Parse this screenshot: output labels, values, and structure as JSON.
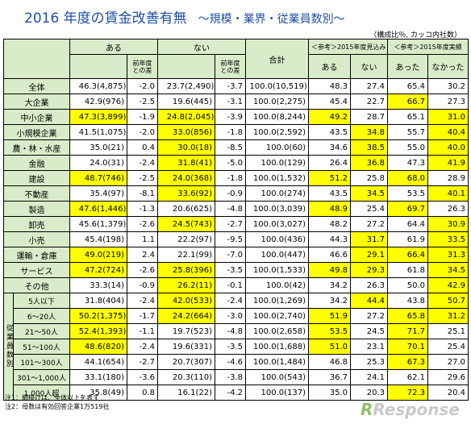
{
  "title": "2016 年度の賃金改善有無",
  "subtitle": "～規模・業界・従業員数別～",
  "unit_note": "（構成比％, カッコ内社数）",
  "headers": {
    "aru": "ある",
    "nai": "ない",
    "prev1": "前年度",
    "prev2": "との差",
    "total": "合計",
    "ref2016": "＜参考＞2015年度見込み",
    "ref2015": "＜参考＞2015年度実績",
    "mikomi_aru": "ある",
    "mikomi_nai": "ない",
    "jisseki_atta": "あった",
    "jisseki_nakatta": "なかった"
  },
  "employee_group_label": "従業員数別",
  "rows": [
    {
      "label": "全体",
      "aru_pct": "46.3",
      "aru_cnt": "(4,875)",
      "aru_diff": "-2.0",
      "nai_pct": "23.7",
      "nai_cnt": "(2,490)",
      "nai_diff": "-3.7",
      "tot_pct": "100.0",
      "tot_cnt": "(10,519)",
      "m_aru": "48.3",
      "m_nai": "27.4",
      "j_atta": "65.4",
      "j_nakatta": "30.2",
      "hl": []
    },
    {
      "label": "大企業",
      "aru_pct": "42.9",
      "aru_cnt": "(976)",
      "aru_diff": "-2.5",
      "nai_pct": "19.6",
      "nai_cnt": "(445)",
      "nai_diff": "-3.1",
      "tot_pct": "100.0",
      "tot_cnt": "(2,275)",
      "m_aru": "45.4",
      "m_nai": "22.7",
      "j_atta": "66.7",
      "j_nakatta": "27.3",
      "hl": [
        "j_atta"
      ]
    },
    {
      "label": "中小企業",
      "aru_pct": "47.3",
      "aru_cnt": "(3,899)",
      "aru_diff": "-1.9",
      "nai_pct": "24.8",
      "nai_cnt": "(2,045)",
      "nai_diff": "-3.9",
      "tot_pct": "100.0",
      "tot_cnt": "(8,244)",
      "m_aru": "49.2",
      "m_nai": "28.7",
      "j_atta": "65.1",
      "j_nakatta": "31.0",
      "hl": [
        "aru",
        "nai",
        "m_aru",
        "j_nakatta"
      ]
    },
    {
      "label": "小規模企業",
      "aru_pct": "41.5",
      "aru_cnt": "(1,075)",
      "aru_diff": "-2.0",
      "nai_pct": "33.0",
      "nai_cnt": "(856)",
      "nai_diff": "-1.8",
      "tot_pct": "100.0",
      "tot_cnt": "(2,592)",
      "m_aru": "43.5",
      "m_nai": "34.8",
      "j_atta": "55.7",
      "j_nakatta": "40.4",
      "hl": [
        "nai",
        "m_nai",
        "j_nakatta"
      ]
    },
    {
      "label": "農・林・水産",
      "aru_pct": "35.0",
      "aru_cnt": "(21)",
      "aru_diff": "0.4",
      "nai_pct": "30.0",
      "nai_cnt": "(18)",
      "nai_diff": "-8.5",
      "tot_pct": "100.0",
      "tot_cnt": "(60)",
      "m_aru": "34.6",
      "m_nai": "38.5",
      "j_atta": "55.0",
      "j_nakatta": "40.0",
      "hl": [
        "nai",
        "m_nai",
        "j_nakatta"
      ]
    },
    {
      "label": "金融",
      "aru_pct": "24.0",
      "aru_cnt": "(31)",
      "aru_diff": "-2.4",
      "nai_pct": "31.8",
      "nai_cnt": "(41)",
      "nai_diff": "-5.0",
      "tot_pct": "100.0",
      "tot_cnt": "(129)",
      "m_aru": "26.4",
      "m_nai": "36.8",
      "j_atta": "47.3",
      "j_nakatta": "41.9",
      "hl": [
        "nai",
        "m_nai",
        "j_nakatta"
      ]
    },
    {
      "label": "建設",
      "aru_pct": "48.7",
      "aru_cnt": "(746)",
      "aru_diff": "-2.5",
      "nai_pct": "24.0",
      "nai_cnt": "(368)",
      "nai_diff": "-1.8",
      "tot_pct": "100.0",
      "tot_cnt": "(1,532)",
      "m_aru": "51.2",
      "m_nai": "25.8",
      "j_atta": "68.0",
      "j_nakatta": "28.9",
      "hl": [
        "aru",
        "nai",
        "m_aru",
        "j_atta"
      ]
    },
    {
      "label": "不動産",
      "aru_pct": "35.4",
      "aru_cnt": "(97)",
      "aru_diff": "-8.1",
      "nai_pct": "33.6",
      "nai_cnt": "(92)",
      "nai_diff": "-0.9",
      "tot_pct": "100.0",
      "tot_cnt": "(274)",
      "m_aru": "43.5",
      "m_nai": "34.5",
      "j_atta": "53.5",
      "j_nakatta": "40.1",
      "hl": [
        "nai",
        "m_nai",
        "j_nakatta"
      ]
    },
    {
      "label": "製造",
      "aru_pct": "47.6",
      "aru_cnt": "(1,446)",
      "aru_diff": "-1.3",
      "nai_pct": "20.6",
      "nai_cnt": "(625)",
      "nai_diff": "-4.8",
      "tot_pct": "100.0",
      "tot_cnt": "(3,039)",
      "m_aru": "48.9",
      "m_nai": "25.4",
      "j_atta": "69.7",
      "j_nakatta": "26.3",
      "hl": [
        "aru",
        "m_aru",
        "j_atta"
      ]
    },
    {
      "label": "卸売",
      "aru_pct": "45.6",
      "aru_cnt": "(1,379)",
      "aru_diff": "-2.6",
      "nai_pct": "24.5",
      "nai_cnt": "(743)",
      "nai_diff": "-2.7",
      "tot_pct": "100.0",
      "tot_cnt": "(3,027)",
      "m_aru": "48.2",
      "m_nai": "27.2",
      "j_atta": "64.4",
      "j_nakatta": "30.9",
      "hl": [
        "nai",
        "j_nakatta"
      ]
    },
    {
      "label": "小売",
      "aru_pct": "45.4",
      "aru_cnt": "(198)",
      "aru_diff": "1.1",
      "nai_pct": "22.2",
      "nai_cnt": "(97)",
      "nai_diff": "-9.5",
      "tot_pct": "100.0",
      "tot_cnt": "(436)",
      "m_aru": "44.3",
      "m_nai": "31.7",
      "j_atta": "61.9",
      "j_nakatta": "33.5",
      "hl": [
        "m_nai",
        "j_nakatta"
      ]
    },
    {
      "label": "運輸・倉庫",
      "aru_pct": "49.0",
      "aru_cnt": "(219)",
      "aru_diff": "2.4",
      "nai_pct": "22.1",
      "nai_cnt": "(99)",
      "nai_diff": "-7.0",
      "tot_pct": "100.0",
      "tot_cnt": "(447)",
      "m_aru": "46.6",
      "m_nai": "29.1",
      "j_atta": "66.4",
      "j_nakatta": "31.3",
      "hl": [
        "aru",
        "m_nai",
        "j_atta",
        "j_nakatta"
      ]
    },
    {
      "label": "サービス",
      "aru_pct": "47.2",
      "aru_cnt": "(724)",
      "aru_diff": "-2.6",
      "nai_pct": "25.8",
      "nai_cnt": "(396)",
      "nai_diff": "-3.5",
      "tot_pct": "100.0",
      "tot_cnt": "(1,533)",
      "m_aru": "49.8",
      "m_nai": "29.3",
      "j_atta": "61.8",
      "j_nakatta": "34.5",
      "hl": [
        "aru",
        "nai",
        "m_aru",
        "m_nai",
        "j_nakatta"
      ]
    },
    {
      "label": "その他",
      "aru_pct": "33.3",
      "aru_cnt": "(14)",
      "aru_diff": "-0.9",
      "nai_pct": "26.2",
      "nai_cnt": "(11)",
      "nai_diff": "-0.1",
      "tot_pct": "100.0",
      "tot_cnt": "(42)",
      "m_aru": "34.2",
      "m_nai": "26.3",
      "j_atta": "50.0",
      "j_nakatta": "42.9",
      "hl": [
        "nai",
        "j_nakatta"
      ]
    },
    {
      "label": "5人以下",
      "emp": true,
      "aru_pct": "31.8",
      "aru_cnt": "(404)",
      "aru_diff": "-2.4",
      "nai_pct": "42.0",
      "nai_cnt": "(533)",
      "nai_diff": "-2.4",
      "tot_pct": "100.0",
      "tot_cnt": "(1,269)",
      "m_aru": "34.2",
      "m_nai": "44.4",
      "j_atta": "43.8",
      "j_nakatta": "50.7",
      "hl": [
        "nai",
        "m_nai",
        "j_nakatta"
      ]
    },
    {
      "label": "6～20人",
      "emp": true,
      "aru_pct": "50.2",
      "aru_cnt": "(1,375)",
      "aru_diff": "-1.7",
      "nai_pct": "24.2",
      "nai_cnt": "(664)",
      "nai_diff": "-3.0",
      "tot_pct": "100.0",
      "tot_cnt": "(2,740)",
      "m_aru": "51.9",
      "m_nai": "27.2",
      "j_atta": "65.8",
      "j_nakatta": "31.2",
      "hl": [
        "aru",
        "nai",
        "m_aru",
        "j_atta",
        "j_nakatta"
      ]
    },
    {
      "label": "21～50人",
      "emp": true,
      "aru_pct": "52.4",
      "aru_cnt": "(1,393)",
      "aru_diff": "-1.1",
      "nai_pct": "19.7",
      "nai_cnt": "(523)",
      "nai_diff": "-4.8",
      "tot_pct": "100.0",
      "tot_cnt": "(2,658)",
      "m_aru": "53.5",
      "m_nai": "24.5",
      "j_atta": "71.7",
      "j_nakatta": "25.1",
      "hl": [
        "aru",
        "m_aru",
        "j_atta"
      ]
    },
    {
      "label": "51～100人",
      "emp": true,
      "aru_pct": "48.6",
      "aru_cnt": "(820)",
      "aru_diff": "-2.4",
      "nai_pct": "19.6",
      "nai_cnt": "(331)",
      "nai_diff": "-3.5",
      "tot_pct": "100.0",
      "tot_cnt": "(1,688)",
      "m_aru": "51.0",
      "m_nai": "23.1",
      "j_atta": "70.1",
      "j_nakatta": "25.4",
      "hl": [
        "aru",
        "m_aru",
        "j_atta"
      ]
    },
    {
      "label": "101～300人",
      "emp": true,
      "aru_pct": "44.1",
      "aru_cnt": "(654)",
      "aru_diff": "-2.7",
      "nai_pct": "20.7",
      "nai_cnt": "(307)",
      "nai_diff": "-4.6",
      "tot_pct": "100.0",
      "tot_cnt": "(1,484)",
      "m_aru": "46.8",
      "m_nai": "25.3",
      "j_atta": "67.3",
      "j_nakatta": "27.0",
      "hl": [
        "j_atta"
      ]
    },
    {
      "label": "301～1,000人",
      "emp": true,
      "aru_pct": "33.1",
      "aru_cnt": "(180)",
      "aru_diff": "-3.6",
      "nai_pct": "20.3",
      "nai_cnt": "(110)",
      "nai_diff": "-3.8",
      "tot_pct": "100.0",
      "tot_cnt": "(543)",
      "m_aru": "36.7",
      "m_nai": "24.1",
      "j_atta": "62.1",
      "j_nakatta": "29.6",
      "hl": []
    },
    {
      "label": "1,000人超",
      "emp": true,
      "aru_pct": "35.8",
      "aru_cnt": "(49)",
      "aru_diff": "0.8",
      "nai_pct": "16.1",
      "nai_cnt": "(22)",
      "nai_diff": "-4.2",
      "tot_pct": "100.0",
      "tot_cnt": "(137)",
      "m_aru": "35.0",
      "m_nai": "20.3",
      "j_atta": "72.3",
      "j_nakatta": "20.4",
      "hl": [
        "j_atta"
      ]
    }
  ],
  "notes": [
    "注1：網掛けは、全体以上を表す",
    "注2：母数は有効回答企業1万519社"
  ],
  "logo_text": "Response",
  "logo_mark": "R"
}
